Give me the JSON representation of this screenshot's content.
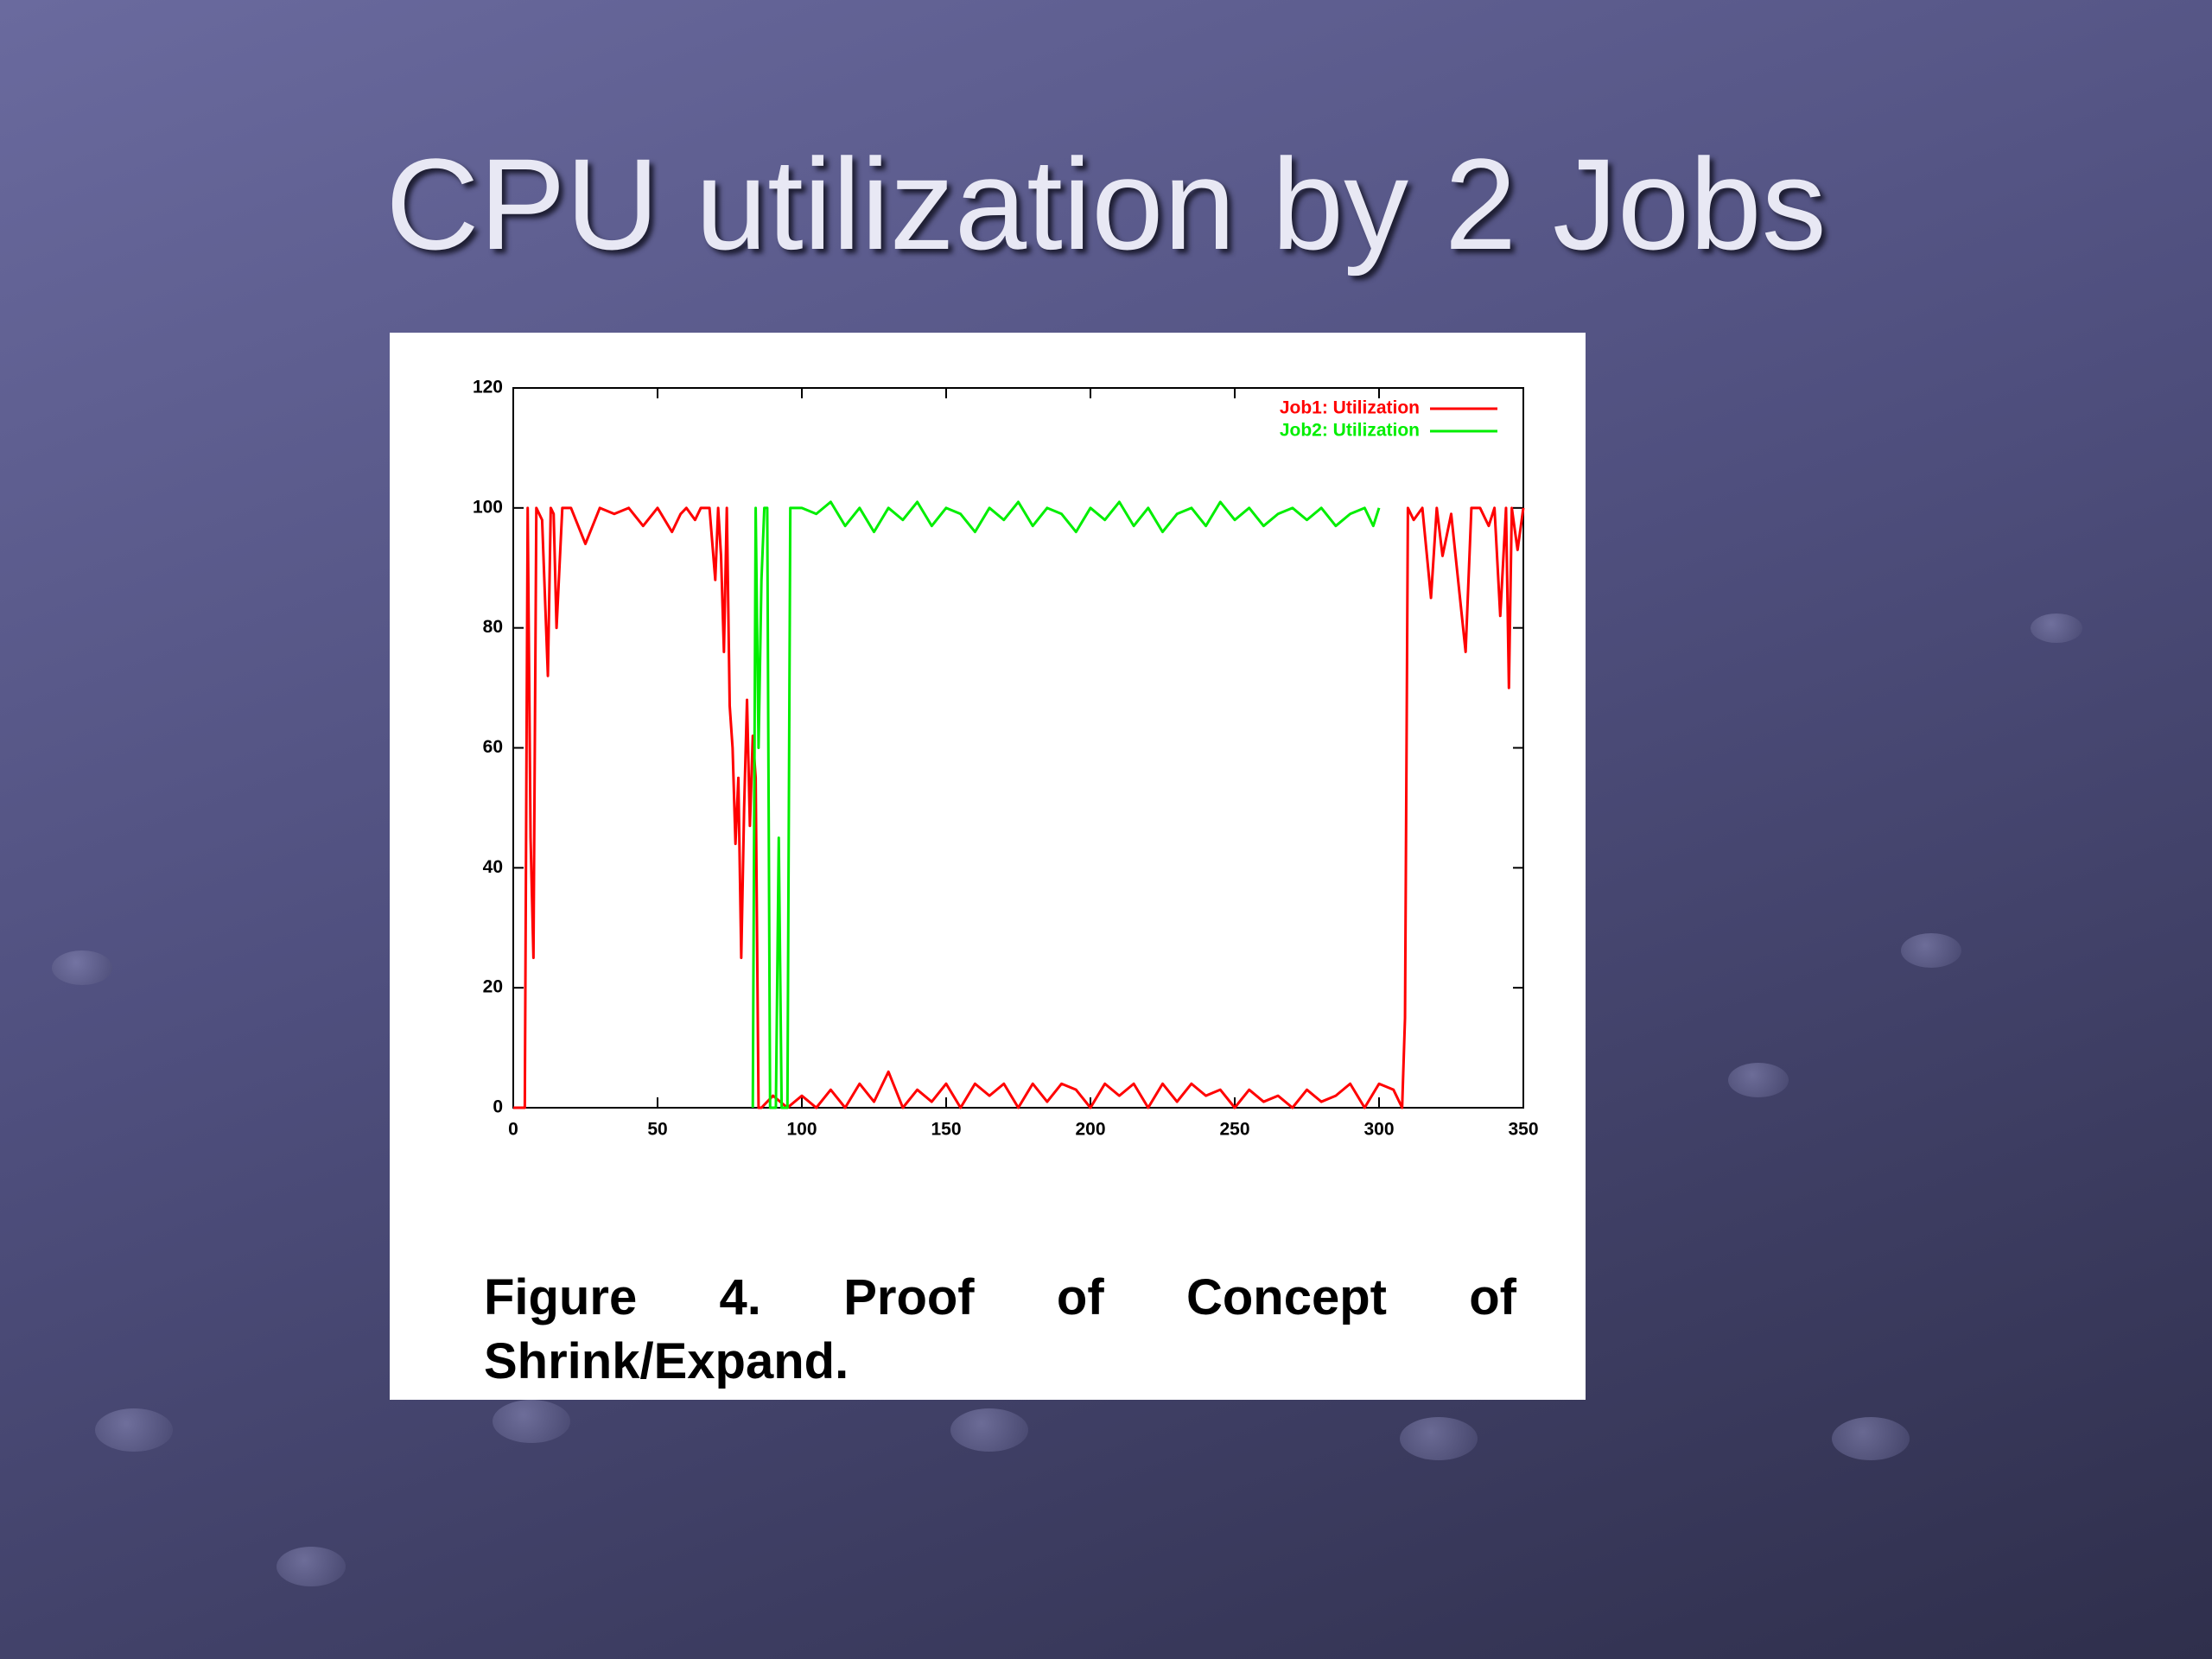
{
  "chart_data": {
    "type": "line",
    "title": "CPU utilization by 2 Jobs",
    "caption": "Figure 4. Proof of Concept of Shrink/Expand.",
    "xlim": [
      0,
      350
    ],
    "xticks": [
      0,
      50,
      100,
      150,
      200,
      250,
      300,
      350
    ],
    "ylim": [
      0,
      120
    ],
    "yticks": [
      0,
      20,
      40,
      60,
      80,
      100,
      120
    ],
    "legend": "top-right",
    "series": [
      {
        "name": "Job1: Utilization",
        "color": "#ff0000",
        "x": [
          0,
          4,
          5,
          6,
          7,
          8,
          10,
          12,
          13,
          14,
          15,
          17,
          20,
          25,
          30,
          35,
          40,
          45,
          50,
          55,
          58,
          60,
          63,
          65,
          68,
          70,
          71,
          72,
          73,
          74,
          75,
          76,
          77,
          78,
          79,
          80,
          81,
          82,
          83,
          84,
          85,
          86,
          90,
          95,
          100,
          105,
          110,
          115,
          120,
          125,
          130,
          135,
          140,
          145,
          150,
          155,
          160,
          165,
          170,
          175,
          180,
          185,
          190,
          195,
          200,
          205,
          210,
          215,
          220,
          225,
          230,
          235,
          240,
          245,
          250,
          255,
          260,
          265,
          270,
          275,
          280,
          285,
          290,
          295,
          300,
          305,
          308,
          309,
          310,
          312,
          315,
          318,
          320,
          322,
          325,
          330,
          332,
          335,
          338,
          340,
          342,
          344,
          345,
          346,
          348,
          350
        ],
        "values": [
          0,
          0,
          100,
          45,
          25,
          100,
          98,
          72,
          100,
          99,
          80,
          100,
          100,
          94,
          100,
          99,
          100,
          97,
          100,
          96,
          99,
          100,
          98,
          100,
          100,
          88,
          100,
          92,
          76,
          100,
          67,
          60,
          44,
          55,
          25,
          50,
          68,
          47,
          62,
          55,
          0,
          0,
          2,
          0,
          2,
          0,
          3,
          0,
          4,
          1,
          6,
          0,
          3,
          1,
          4,
          0,
          4,
          2,
          4,
          0,
          4,
          1,
          4,
          3,
          0,
          4,
          2,
          4,
          0,
          4,
          1,
          4,
          2,
          3,
          0,
          3,
          1,
          2,
          0,
          3,
          1,
          2,
          4,
          0,
          4,
          3,
          0,
          15,
          100,
          98,
          100,
          85,
          100,
          92,
          99,
          76,
          100,
          100,
          97,
          100,
          82,
          100,
          70,
          100,
          93,
          100
        ]
      },
      {
        "name": "Job2: Utilization",
        "color": "#00ee00",
        "x": [
          83,
          84,
          85,
          86,
          87,
          88,
          89,
          91,
          92,
          93,
          95,
          96,
          100,
          105,
          110,
          115,
          120,
          125,
          130,
          135,
          140,
          145,
          150,
          155,
          160,
          165,
          170,
          175,
          180,
          185,
          190,
          195,
          200,
          205,
          210,
          215,
          220,
          225,
          230,
          235,
          240,
          245,
          250,
          255,
          260,
          265,
          270,
          275,
          280,
          285,
          290,
          295,
          298,
          300
        ],
        "values": [
          0,
          100,
          60,
          88,
          100,
          100,
          0,
          0,
          45,
          0,
          0,
          100,
          100,
          99,
          101,
          97,
          100,
          96,
          100,
          98,
          101,
          97,
          100,
          99,
          96,
          100,
          98,
          101,
          97,
          100,
          99,
          96,
          100,
          98,
          101,
          97,
          100,
          96,
          99,
          100,
          97,
          101,
          98,
          100,
          97,
          99,
          100,
          98,
          100,
          97,
          99,
          100,
          97,
          100
        ]
      }
    ]
  }
}
